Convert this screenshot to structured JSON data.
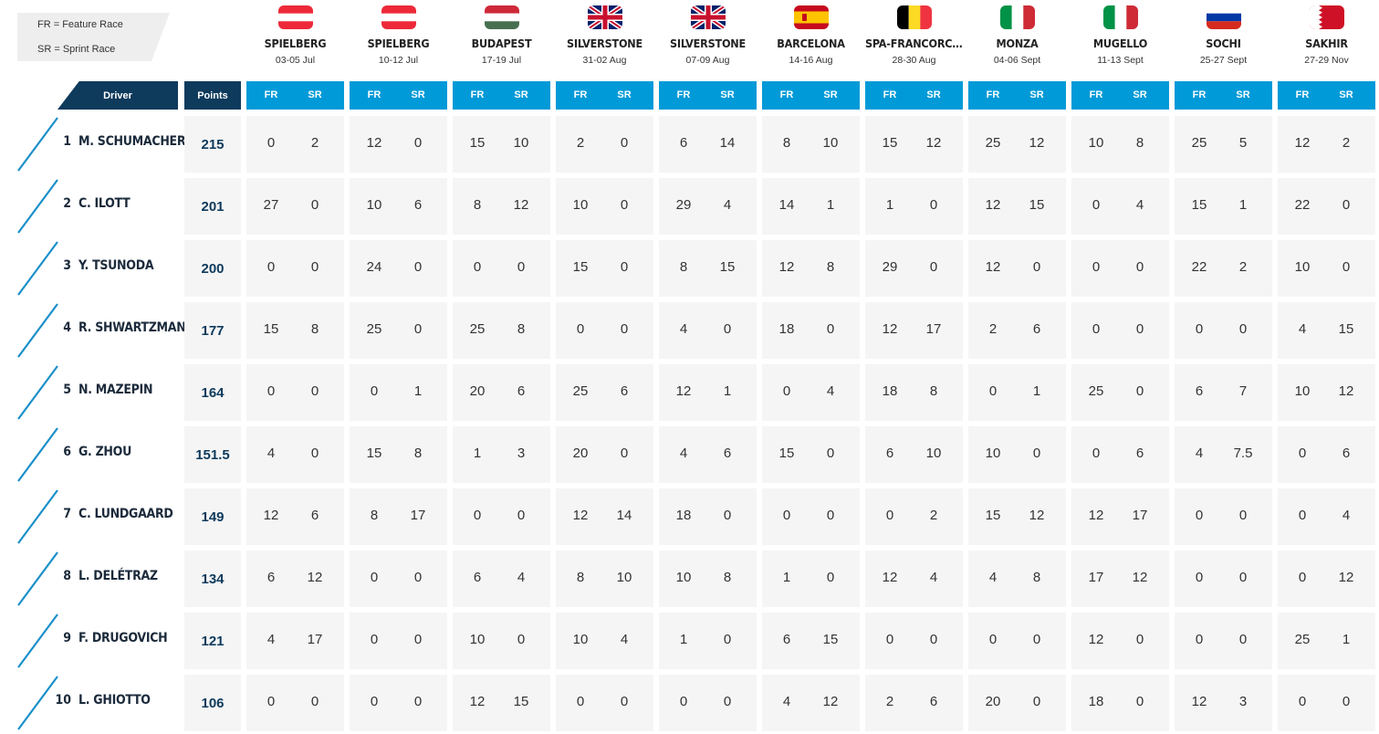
{
  "legend": {
    "fr": "FR = Feature Race",
    "sr": "SR = Sprint Race"
  },
  "headers": {
    "driver": "Driver",
    "points": "Points",
    "fr": "FR",
    "sr": "SR"
  },
  "races": [
    {
      "name": "SPIELBERG",
      "dates": "03-05 Jul",
      "flag": "austria"
    },
    {
      "name": "SPIELBERG",
      "dates": "10-12 Jul",
      "flag": "austria"
    },
    {
      "name": "BUDAPEST",
      "dates": "17-19 Jul",
      "flag": "hungary"
    },
    {
      "name": "SILVERSTONE",
      "dates": "31-02 Aug",
      "flag": "uk"
    },
    {
      "name": "SILVERSTONE",
      "dates": "07-09 Aug",
      "flag": "uk"
    },
    {
      "name": "BARCELONA",
      "dates": "14-16 Aug",
      "flag": "spain"
    },
    {
      "name": "SPA-FRANCORC...",
      "dates": "28-30 Aug",
      "flag": "belgium"
    },
    {
      "name": "MONZA",
      "dates": "04-06 Sept",
      "flag": "italy"
    },
    {
      "name": "MUGELLO",
      "dates": "11-13 Sept",
      "flag": "italy"
    },
    {
      "name": "SOCHI",
      "dates": "25-27 Sept",
      "flag": "russia"
    },
    {
      "name": "SAKHIR",
      "dates": "27-29 Nov",
      "flag": "bahrain"
    }
  ],
  "colors": {
    "navy": "#0e3a5c",
    "blue": "#009ad8",
    "cell": "#f5f5f5",
    "austria_red": "#ed2939",
    "hungary_red": "#ce2939",
    "hungary_green": "#477050",
    "uk_blue": "#012169",
    "uk_red": "#c8102e",
    "spain_red": "#c60b1e",
    "spain_yellow": "#ffc400",
    "belgium_black": "#000000",
    "belgium_yellow": "#fdda24",
    "belgium_red": "#ef3340",
    "italy_green": "#009246",
    "italy_red": "#ce2b37",
    "russia_blue": "#0039a6",
    "russia_red": "#d52b1e",
    "bahrain_red": "#ce1126"
  },
  "drivers": [
    {
      "pos": "1",
      "name": "M. SCHUMACHER",
      "points": "215",
      "results": [
        [
          "0",
          "2"
        ],
        [
          "12",
          "0"
        ],
        [
          "15",
          "10"
        ],
        [
          "2",
          "0"
        ],
        [
          "6",
          "14"
        ],
        [
          "8",
          "10"
        ],
        [
          "15",
          "12"
        ],
        [
          "25",
          "12"
        ],
        [
          "10",
          "8"
        ],
        [
          "25",
          "5"
        ],
        [
          "12",
          "2"
        ]
      ]
    },
    {
      "pos": "2",
      "name": "C. ILOTT",
      "points": "201",
      "results": [
        [
          "27",
          "0"
        ],
        [
          "10",
          "6"
        ],
        [
          "8",
          "12"
        ],
        [
          "10",
          "0"
        ],
        [
          "29",
          "4"
        ],
        [
          "14",
          "1"
        ],
        [
          "1",
          "0"
        ],
        [
          "12",
          "15"
        ],
        [
          "0",
          "4"
        ],
        [
          "15",
          "1"
        ],
        [
          "22",
          "0"
        ]
      ]
    },
    {
      "pos": "3",
      "name": "Y. TSUNODA",
      "points": "200",
      "results": [
        [
          "0",
          "0"
        ],
        [
          "24",
          "0"
        ],
        [
          "0",
          "0"
        ],
        [
          "15",
          "0"
        ],
        [
          "8",
          "15"
        ],
        [
          "12",
          "8"
        ],
        [
          "29",
          "0"
        ],
        [
          "12",
          "0"
        ],
        [
          "0",
          "0"
        ],
        [
          "22",
          "2"
        ],
        [
          "10",
          "0"
        ]
      ]
    },
    {
      "pos": "4",
      "name": "R. SHWARTZMAN",
      "points": "177",
      "results": [
        [
          "15",
          "8"
        ],
        [
          "25",
          "0"
        ],
        [
          "25",
          "8"
        ],
        [
          "0",
          "0"
        ],
        [
          "4",
          "0"
        ],
        [
          "18",
          "0"
        ],
        [
          "12",
          "17"
        ],
        [
          "2",
          "6"
        ],
        [
          "0",
          "0"
        ],
        [
          "0",
          "0"
        ],
        [
          "4",
          "15"
        ]
      ]
    },
    {
      "pos": "5",
      "name": "N. MAZEPIN",
      "points": "164",
      "results": [
        [
          "0",
          "0"
        ],
        [
          "0",
          "1"
        ],
        [
          "20",
          "6"
        ],
        [
          "25",
          "6"
        ],
        [
          "12",
          "1"
        ],
        [
          "0",
          "4"
        ],
        [
          "18",
          "8"
        ],
        [
          "0",
          "1"
        ],
        [
          "25",
          "0"
        ],
        [
          "6",
          "7"
        ],
        [
          "10",
          "12"
        ]
      ]
    },
    {
      "pos": "6",
      "name": "G. ZHOU",
      "points": "151.5",
      "results": [
        [
          "4",
          "0"
        ],
        [
          "15",
          "8"
        ],
        [
          "1",
          "3"
        ],
        [
          "20",
          "0"
        ],
        [
          "4",
          "6"
        ],
        [
          "15",
          "0"
        ],
        [
          "6",
          "10"
        ],
        [
          "10",
          "0"
        ],
        [
          "0",
          "6"
        ],
        [
          "4",
          "7.5"
        ],
        [
          "0",
          "6"
        ]
      ]
    },
    {
      "pos": "7",
      "name": "C. LUNDGAARD",
      "points": "149",
      "results": [
        [
          "12",
          "6"
        ],
        [
          "8",
          "17"
        ],
        [
          "0",
          "0"
        ],
        [
          "12",
          "14"
        ],
        [
          "18",
          "0"
        ],
        [
          "0",
          "0"
        ],
        [
          "0",
          "2"
        ],
        [
          "15",
          "12"
        ],
        [
          "12",
          "17"
        ],
        [
          "0",
          "0"
        ],
        [
          "0",
          "4"
        ]
      ]
    },
    {
      "pos": "8",
      "name": "L. DELÉTRAZ",
      "points": "134",
      "results": [
        [
          "6",
          "12"
        ],
        [
          "0",
          "0"
        ],
        [
          "6",
          "4"
        ],
        [
          "8",
          "10"
        ],
        [
          "10",
          "8"
        ],
        [
          "1",
          "0"
        ],
        [
          "12",
          "4"
        ],
        [
          "4",
          "8"
        ],
        [
          "17",
          "12"
        ],
        [
          "0",
          "0"
        ],
        [
          "0",
          "12"
        ]
      ]
    },
    {
      "pos": "9",
      "name": "F. DRUGOVICH",
      "points": "121",
      "results": [
        [
          "4",
          "17"
        ],
        [
          "0",
          "0"
        ],
        [
          "10",
          "0"
        ],
        [
          "10",
          "4"
        ],
        [
          "1",
          "0"
        ],
        [
          "6",
          "15"
        ],
        [
          "0",
          "0"
        ],
        [
          "0",
          "0"
        ],
        [
          "12",
          "0"
        ],
        [
          "0",
          "0"
        ],
        [
          "25",
          "1"
        ]
      ]
    },
    {
      "pos": "10",
      "name": "L. GHIOTTO",
      "points": "106",
      "results": [
        [
          "0",
          "0"
        ],
        [
          "0",
          "0"
        ],
        [
          "12",
          "15"
        ],
        [
          "0",
          "0"
        ],
        [
          "0",
          "0"
        ],
        [
          "4",
          "12"
        ],
        [
          "2",
          "6"
        ],
        [
          "20",
          "0"
        ],
        [
          "18",
          "0"
        ],
        [
          "12",
          "3"
        ],
        [
          "0",
          "0"
        ]
      ]
    }
  ]
}
